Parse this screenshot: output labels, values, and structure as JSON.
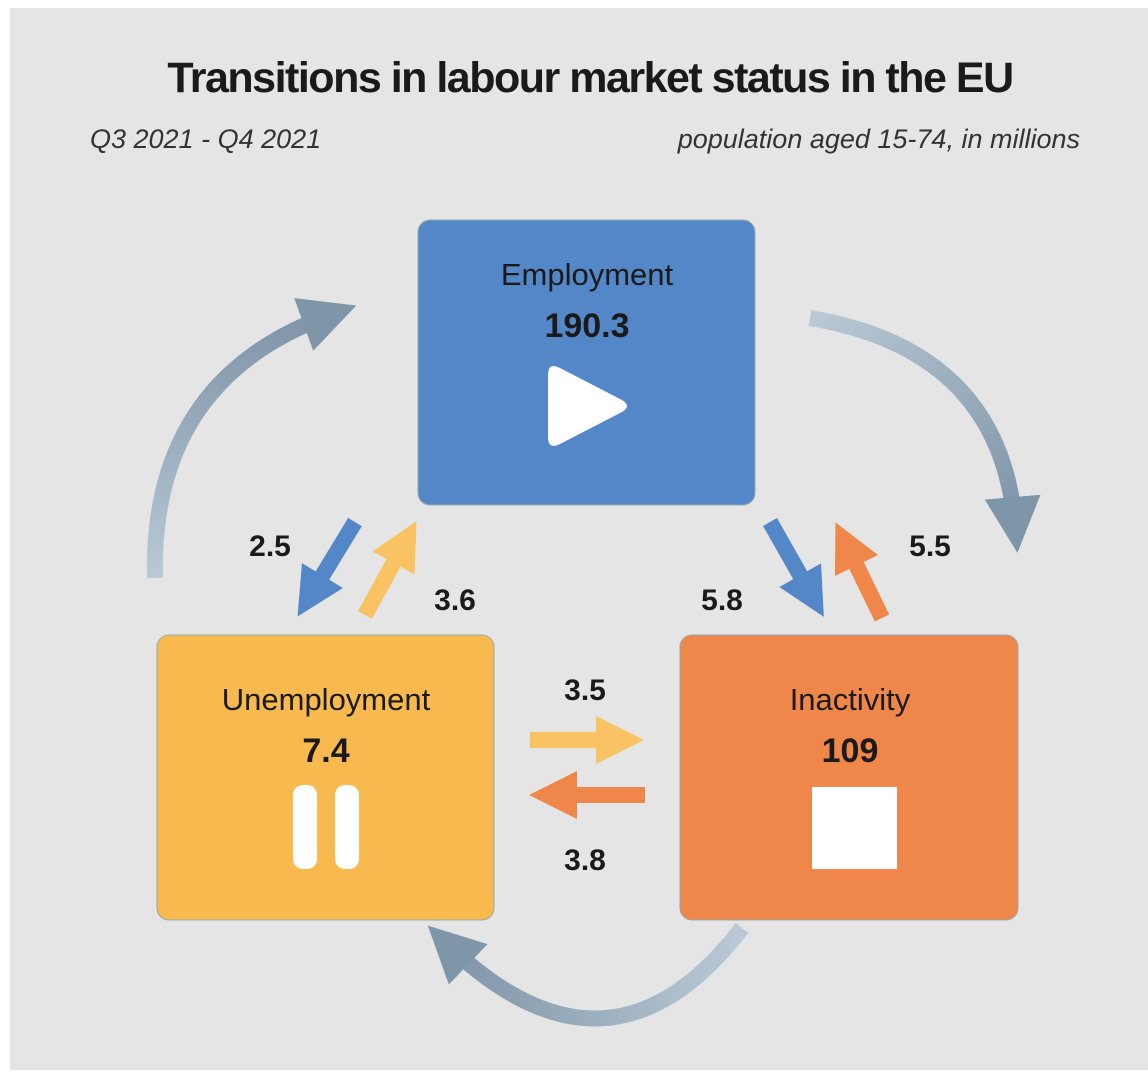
{
  "header": {
    "title": "Transitions in labour market status in the EU",
    "period": "Q3 2021 - Q4 2021",
    "note": "population aged 15-74, in millions"
  },
  "nodes": [
    {
      "label": "Employment",
      "value": 190.3
    },
    {
      "label": "Unemployment",
      "value": 7.4
    },
    {
      "label": "Inactivity",
      "value": 109
    }
  ],
  "flows": [
    {
      "from": "Employment",
      "to": "Unemployment",
      "value": 2.5
    },
    {
      "from": "Unemployment",
      "to": "Employment",
      "value": 3.6
    },
    {
      "from": "Employment",
      "to": "Inactivity",
      "value": 5.8
    },
    {
      "from": "Inactivity",
      "to": "Employment",
      "value": 5.5
    },
    {
      "from": "Unemployment",
      "to": "Inactivity",
      "value": 3.5
    },
    {
      "from": "Inactivity",
      "to": "Unemployment",
      "value": 3.8
    }
  ]
}
